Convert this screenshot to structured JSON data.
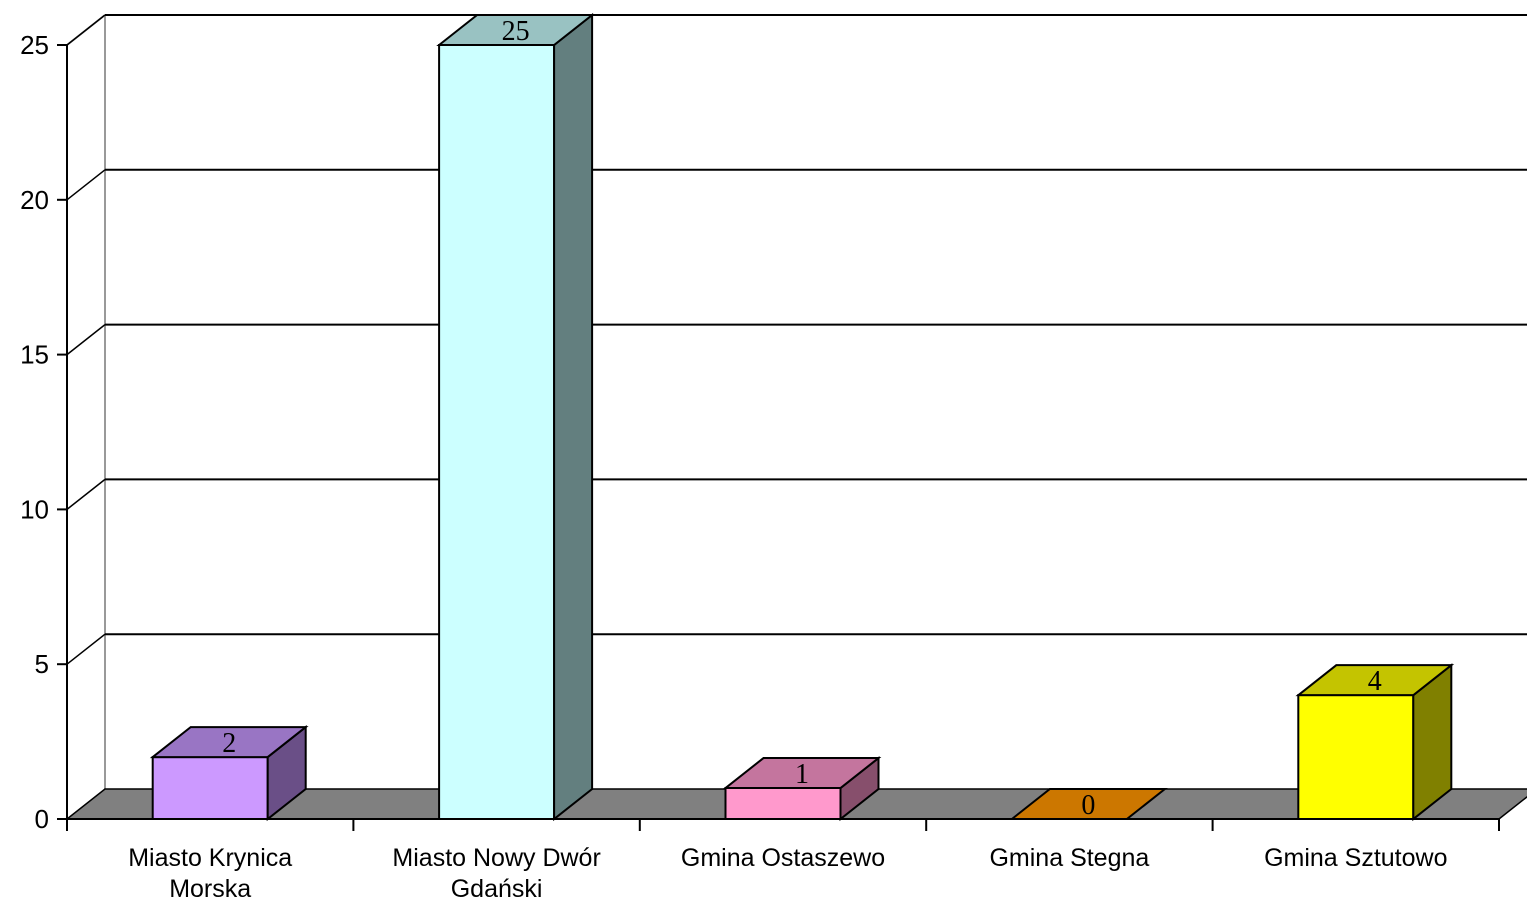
{
  "chart_data": {
    "type": "bar",
    "three_d": true,
    "grid": true,
    "ylim": [
      0,
      25
    ],
    "yticks": [
      "0",
      "5",
      "10",
      "15",
      "20",
      "25"
    ],
    "categories": [
      [
        "Miasto Krynica",
        "Morska"
      ],
      [
        "Miasto Nowy Dwór",
        "Gdański"
      ],
      [
        "Gmina Ostaszewo"
      ],
      [
        "Gmina Stegna"
      ],
      [
        "Gmina Sztutowo"
      ]
    ],
    "values": [
      2,
      25,
      1,
      0,
      4
    ],
    "data_labels": [
      "2",
      "25",
      "1",
      "0",
      "4"
    ],
    "colors": [
      {
        "front": "#cc99ff",
        "top": "#9975c4",
        "side": "#6a4f87"
      },
      {
        "front": "#ccffff",
        "top": "#99c2c2",
        "side": "#637f7f"
      },
      {
        "front": "#ff99cc",
        "top": "#c4759e",
        "side": "#874f6c"
      },
      {
        "front": "#cc7700",
        "top": "#cc7700",
        "side": "#8a5000"
      },
      {
        "front": "#ffff00",
        "top": "#c4c400",
        "side": "#808000"
      }
    ],
    "floor_color": "#808080"
  }
}
